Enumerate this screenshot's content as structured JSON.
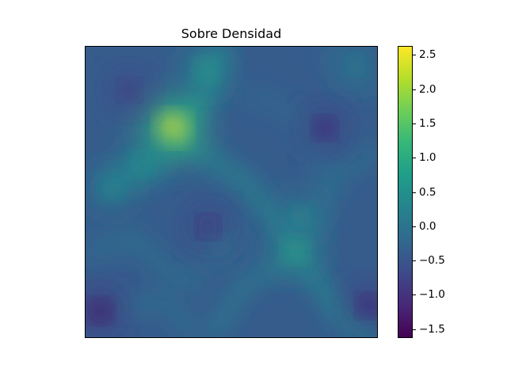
{
  "chart_data": {
    "type": "heatmap",
    "title": "Sobre Densidad",
    "xlabel": "",
    "ylabel": "",
    "axis_ticks_visible": false,
    "grid": false,
    "colormap": "viridis",
    "colorbar": {
      "placement": "right",
      "range": [
        -1.62,
        2.62
      ],
      "ticks": [
        2.5,
        2.0,
        1.5,
        1.0,
        0.5,
        0.0,
        -0.5,
        -1.0,
        -1.5
      ],
      "tick_labels": [
        "2.5",
        "2.0",
        "1.5",
        "1.0",
        "0.5",
        "0.0",
        "−0.5",
        "−1.0",
        "−1.5"
      ]
    },
    "background_value": -0.4,
    "grid_extent": [
      0,
      1
    ],
    "features": [
      {
        "type": "peak",
        "x": 0.3,
        "y": 0.28,
        "value": 2.62
      },
      {
        "type": "peak",
        "x": 0.72,
        "y": 0.7,
        "value": 1.1
      },
      {
        "type": "peak",
        "x": 0.41,
        "y": 0.08,
        "value": 0.9
      },
      {
        "type": "peak",
        "x": 0.19,
        "y": 0.4,
        "value": 0.7
      },
      {
        "type": "peak",
        "x": 0.09,
        "y": 0.49,
        "value": 0.5
      },
      {
        "type": "peak",
        "x": 0.74,
        "y": 0.58,
        "value": 0.6
      },
      {
        "type": "peak",
        "x": 0.46,
        "y": 0.68,
        "value": 0.3
      },
      {
        "type": "peak",
        "x": 0.93,
        "y": 0.06,
        "value": 0.4
      },
      {
        "type": "trough",
        "x": 0.05,
        "y": 0.91,
        "value": -1.6
      },
      {
        "type": "trough",
        "x": 0.97,
        "y": 0.89,
        "value": -1.4
      },
      {
        "type": "trough",
        "x": 0.82,
        "y": 0.28,
        "value": -1.3
      },
      {
        "type": "trough",
        "x": 0.42,
        "y": 0.62,
        "value": -1.2
      },
      {
        "type": "trough",
        "x": 0.15,
        "y": 0.15,
        "value": -1.1
      }
    ]
  }
}
